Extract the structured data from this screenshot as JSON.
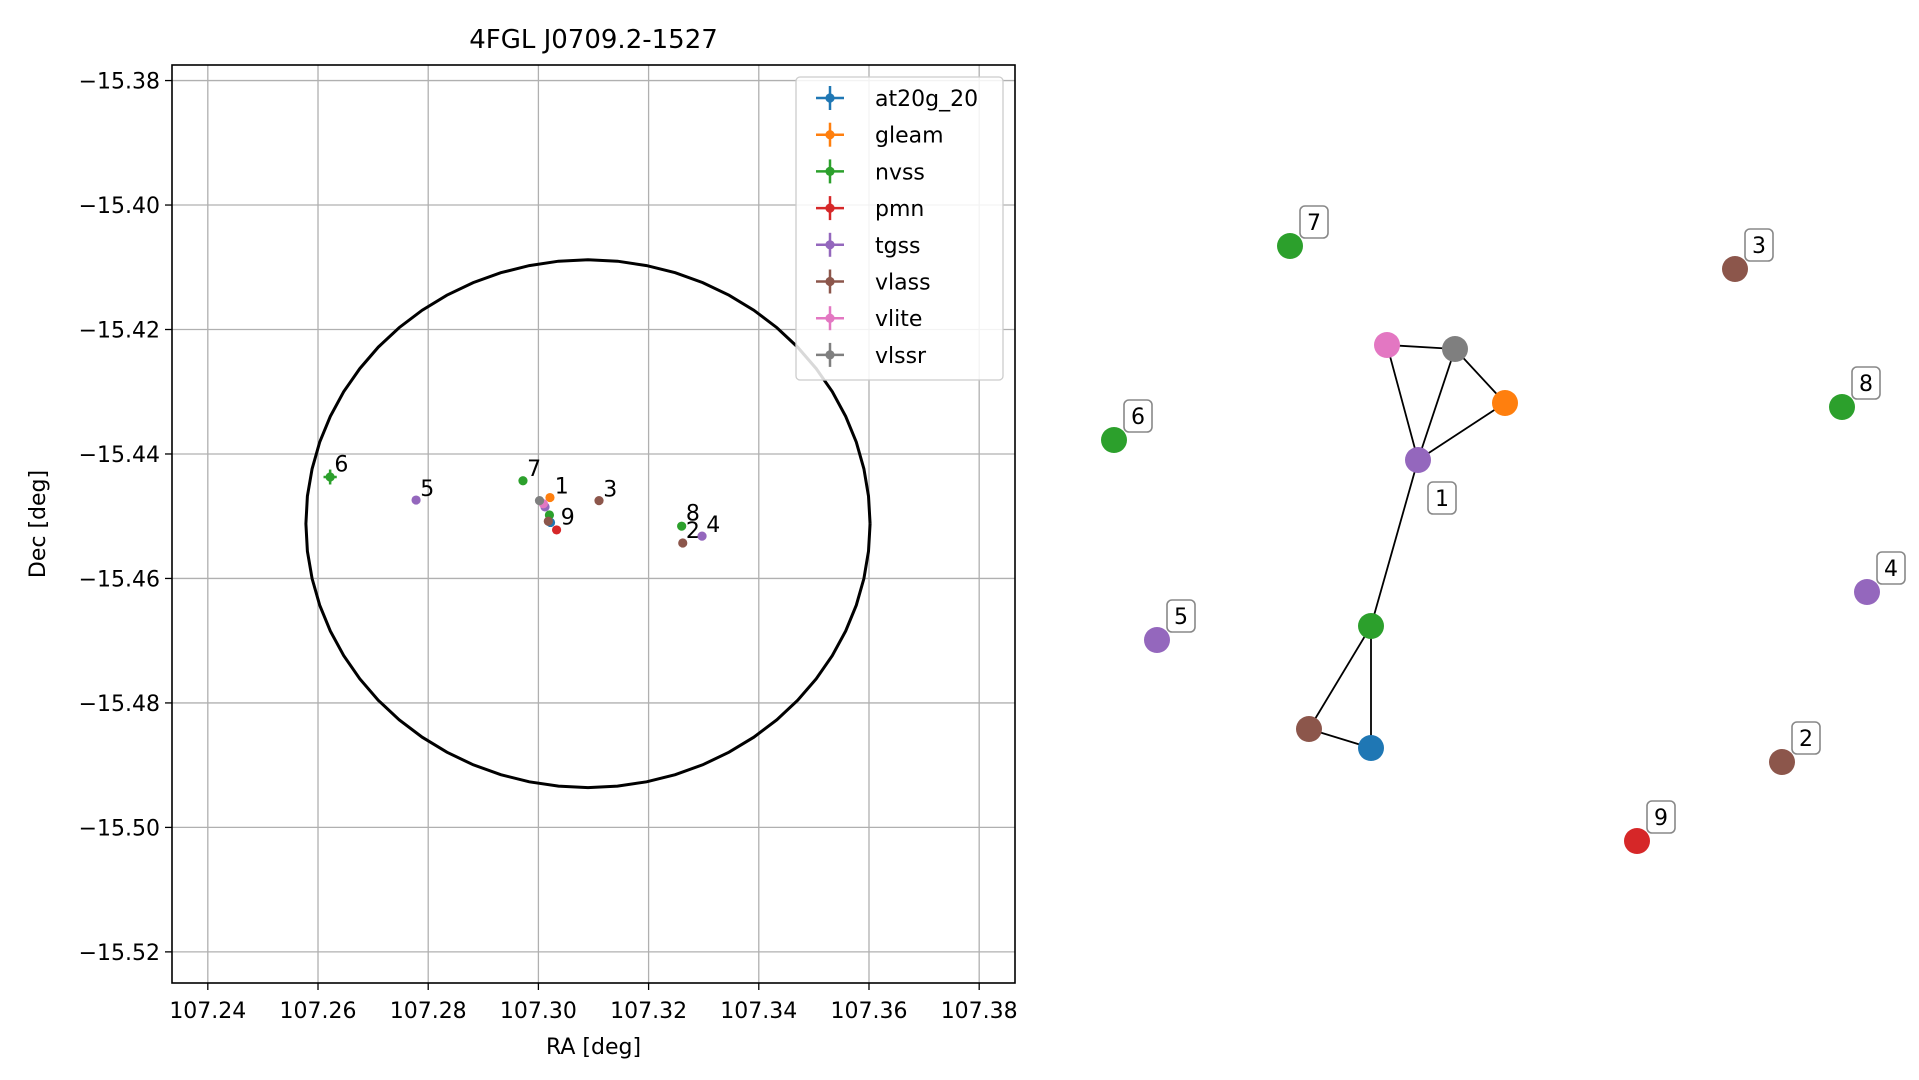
{
  "chart_data": [
    {
      "type": "scatter",
      "title": "4FGL J0709.2-1527",
      "xlabel": "RA [deg]",
      "ylabel": "Dec [deg]",
      "xlim": [
        107.2335,
        107.3865
      ],
      "ylim": [
        -15.525,
        -15.3775
      ],
      "xticks": [
        107.24,
        107.26,
        107.28,
        107.3,
        107.32,
        107.34,
        107.36,
        107.38
      ],
      "yticks": [
        -15.38,
        -15.4,
        -15.42,
        -15.44,
        -15.46,
        -15.48,
        -15.5,
        -15.52
      ],
      "xtick_labels": [
        "107.24",
        "107.26",
        "107.28",
        "107.30",
        "107.32",
        "107.34",
        "107.36",
        "107.38"
      ],
      "ytick_labels": [
        "−15.38",
        "−15.40",
        "−15.42",
        "−15.44",
        "−15.46",
        "−15.48",
        "−15.50",
        "−15.52"
      ],
      "grid": true,
      "legend_position": "top-right",
      "ellipse": {
        "center_ra": 107.309,
        "center_dec": -15.4512,
        "semi_ra": 0.0512,
        "semi_dec": 0.0424,
        "color": "#000000"
      },
      "series": [
        {
          "name": "at20g_20",
          "color": "#1f77b4",
          "points": [
            {
              "ra": 107.3022,
              "dec": -15.451
            }
          ]
        },
        {
          "name": "gleam",
          "color": "#ff7f0e",
          "points": [
            {
              "ra": 107.3021,
              "dec": -15.447
            }
          ]
        },
        {
          "name": "nvss",
          "color": "#2ca02c",
          "points": [
            {
              "ra": 107.2622,
              "dec": -15.4437,
              "xerr": 0.0012,
              "yerr": 0.0012
            },
            {
              "ra": 107.2972,
              "dec": -15.4443
            },
            {
              "ra": 107.326,
              "dec": -15.4516
            },
            {
              "ra": 107.302,
              "dec": -15.4498
            }
          ]
        },
        {
          "name": "pmn",
          "color": "#d62728",
          "points": [
            {
              "ra": 107.3033,
              "dec": -15.4522
            }
          ]
        },
        {
          "name": "tgss",
          "color": "#9467bd",
          "points": [
            {
              "ra": 107.2778,
              "dec": -15.4474
            },
            {
              "ra": 107.3297,
              "dec": -15.4532
            },
            {
              "ra": 107.3012,
              "dec": -15.4485
            }
          ]
        },
        {
          "name": "vlass",
          "color": "#8c564b",
          "points": [
            {
              "ra": 107.311,
              "dec": -15.4475
            },
            {
              "ra": 107.3262,
              "dec": -15.4543
            },
            {
              "ra": 107.3018,
              "dec": -15.4508
            }
          ]
        },
        {
          "name": "vlite",
          "color": "#e377c2",
          "points": [
            {
              "ra": 107.3009,
              "dec": -15.448
            }
          ]
        },
        {
          "name": "vlssr",
          "color": "#7f7f7f",
          "points": [
            {
              "ra": 107.3002,
              "dec": -15.4475
            }
          ]
        }
      ],
      "annotations": [
        {
          "text": "1",
          "ra": 107.3026,
          "dec": -15.4468
        },
        {
          "text": "2",
          "ra": 107.3264,
          "dec": -15.454
        },
        {
          "text": "3",
          "ra": 107.3114,
          "dec": -15.4473
        },
        {
          "text": "4",
          "ra": 107.3301,
          "dec": -15.453
        },
        {
          "text": "5",
          "ra": 107.2782,
          "dec": -15.4472
        },
        {
          "text": "6",
          "ra": 107.2626,
          "dec": -15.4433
        },
        {
          "text": "7",
          "ra": 107.2976,
          "dec": -15.444
        },
        {
          "text": "8",
          "ra": 107.3264,
          "dec": -15.4512
        },
        {
          "text": "9",
          "ra": 107.3037,
          "dec": -15.4518
        }
      ]
    },
    {
      "type": "network",
      "nodes": [
        {
          "id": "n1",
          "color": "#9467bd",
          "label": "1"
        },
        {
          "id": "n2",
          "color": "#8c564b",
          "label": "2"
        },
        {
          "id": "n3",
          "color": "#8c564b",
          "label": "3"
        },
        {
          "id": "n4",
          "color": "#9467bd",
          "label": "4"
        },
        {
          "id": "n5",
          "color": "#9467bd",
          "label": "5"
        },
        {
          "id": "n6",
          "color": "#2ca02c",
          "label": "6"
        },
        {
          "id": "n7",
          "color": "#2ca02c",
          "label": "7"
        },
        {
          "id": "n8",
          "color": "#2ca02c",
          "label": "8"
        },
        {
          "id": "n9",
          "color": "#d62728",
          "label": "9"
        },
        {
          "id": "vlite",
          "color": "#e377c2",
          "label": ""
        },
        {
          "id": "vlssr",
          "color": "#7f7f7f",
          "label": ""
        },
        {
          "id": "gleam",
          "color": "#ff7f0e",
          "label": ""
        },
        {
          "id": "nvss_c",
          "color": "#2ca02c",
          "label": ""
        },
        {
          "id": "vlass_c",
          "color": "#8c564b",
          "label": ""
        },
        {
          "id": "at20g",
          "color": "#1f77b4",
          "label": ""
        }
      ],
      "edges": [
        [
          "vlite",
          "vlssr"
        ],
        [
          "vlite",
          "n1"
        ],
        [
          "vlssr",
          "n1"
        ],
        [
          "vlssr",
          "gleam"
        ],
        [
          "n1",
          "gleam"
        ],
        [
          "n1",
          "nvss_c"
        ],
        [
          "nvss_c",
          "vlass_c"
        ],
        [
          "nvss_c",
          "at20g"
        ],
        [
          "vlass_c",
          "at20g"
        ]
      ]
    }
  ]
}
